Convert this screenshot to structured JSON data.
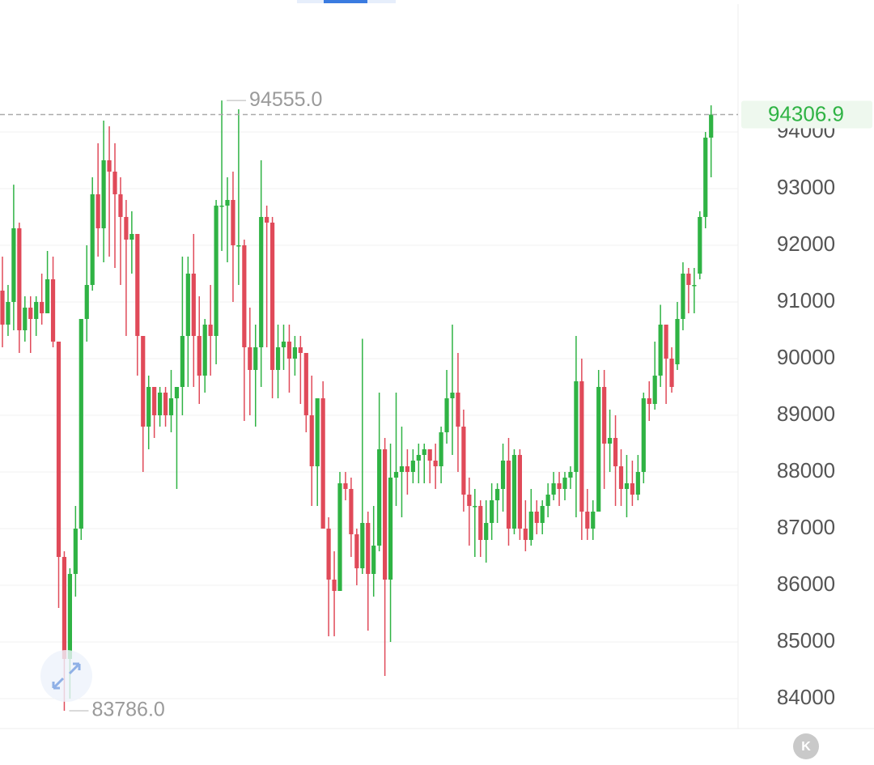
{
  "chart_data": {
    "type": "candlestick",
    "series": [
      {
        "up_color": "#2fb344",
        "down_color": "#e04a59"
      }
    ],
    "candles": [
      [
        91200,
        91800,
        90200,
        90600
      ],
      [
        90600,
        91300,
        90400,
        91000
      ],
      [
        91000,
        93070,
        90500,
        92300
      ],
      [
        92300,
        92400,
        90100,
        90500
      ],
      [
        90500,
        91100,
        90300,
        90900
      ],
      [
        90900,
        91100,
        90100,
        90700
      ],
      [
        90700,
        91100,
        90400,
        91000
      ],
      [
        91000,
        91500,
        90600,
        90800
      ],
      [
        90800,
        91900,
        90800,
        91400
      ],
      [
        91400,
        91800,
        90200,
        90300
      ],
      [
        90300,
        90300,
        85600,
        86500
      ],
      [
        86500,
        86600,
        83786,
        84700
      ],
      [
        84700,
        86300,
        84000,
        86200
      ],
      [
        86200,
        87400,
        85800,
        87000
      ],
      [
        87000,
        90700,
        86800,
        90700
      ],
      [
        90700,
        92000,
        90300,
        91300
      ],
      [
        91300,
        93200,
        91200,
        92900
      ],
      [
        92900,
        93800,
        91800,
        92300
      ],
      [
        92300,
        94200,
        91700,
        93500
      ],
      [
        93500,
        94100,
        91800,
        93300
      ],
      [
        93300,
        93800,
        91600,
        92900
      ],
      [
        92900,
        93200,
        91300,
        92500
      ],
      [
        92500,
        92800,
        90400,
        92100
      ],
      [
        92100,
        92600,
        91500,
        92200
      ],
      [
        92200,
        92200,
        89700,
        90400
      ],
      [
        90400,
        90400,
        88000,
        88800
      ],
      [
        88800,
        89700,
        88400,
        89500
      ],
      [
        89500,
        89500,
        88600,
        89000
      ],
      [
        89000,
        89500,
        88800,
        89400
      ],
      [
        89400,
        89500,
        88800,
        89000
      ],
      [
        89000,
        89800,
        88700,
        89300
      ],
      [
        89300,
        89500,
        87700,
        89500
      ],
      [
        89500,
        91800,
        89000,
        90400
      ],
      [
        90400,
        91800,
        89500,
        91500
      ],
      [
        91500,
        92200,
        89500,
        90400
      ],
      [
        90400,
        91100,
        89200,
        89700
      ],
      [
        89700,
        90700,
        89400,
        90600
      ],
      [
        90600,
        91300,
        89700,
        90400
      ],
      [
        90400,
        92800,
        89900,
        92700
      ],
      [
        92700,
        94555,
        91900,
        92700
      ],
      [
        92700,
        93200,
        91700,
        92800
      ],
      [
        92800,
        93300,
        91000,
        92000
      ],
      [
        92000,
        94400,
        91300,
        92000
      ],
      [
        92000,
        92100,
        88900,
        90200
      ],
      [
        90200,
        90900,
        89000,
        89800
      ],
      [
        89800,
        90600,
        88800,
        90200
      ],
      [
        90200,
        93500,
        89500,
        92500
      ],
      [
        92500,
        92700,
        90200,
        92400
      ],
      [
        92400,
        92500,
        89300,
        89800
      ],
      [
        89800,
        90600,
        89300,
        90200
      ],
      [
        90200,
        90600,
        89800,
        90300
      ],
      [
        90300,
        90600,
        89400,
        90000
      ],
      [
        90000,
        90400,
        89700,
        90200
      ],
      [
        90200,
        90400,
        89200,
        90100
      ],
      [
        90100,
        90100,
        88700,
        89000
      ],
      [
        89000,
        89700,
        87400,
        88100
      ],
      [
        88100,
        89300,
        87400,
        89300
      ],
      [
        89300,
        89600,
        87000,
        87000
      ],
      [
        87000,
        87200,
        85100,
        86100
      ],
      [
        86100,
        86600,
        85100,
        85900
      ],
      [
        85900,
        88000,
        85900,
        87800
      ],
      [
        87800,
        88000,
        87500,
        87700
      ],
      [
        87700,
        87900,
        86500,
        86900
      ],
      [
        86900,
        87000,
        86000,
        86300
      ],
      [
        86300,
        90350,
        86200,
        87100
      ],
      [
        87100,
        87300,
        85200,
        86200
      ],
      [
        86200,
        87400,
        85800,
        86700
      ],
      [
        86700,
        89400,
        86600,
        88400
      ],
      [
        88400,
        88600,
        84400,
        86100
      ],
      [
        86100,
        88500,
        85000,
        87900
      ],
      [
        87900,
        89400,
        87400,
        88000
      ],
      [
        88000,
        88800,
        87200,
        88100
      ],
      [
        88100,
        88400,
        87600,
        88000
      ],
      [
        88000,
        88400,
        87800,
        88200
      ],
      [
        88200,
        88500,
        87800,
        88300
      ],
      [
        88300,
        88500,
        87800,
        88400
      ],
      [
        88400,
        88400,
        87800,
        88200
      ],
      [
        88200,
        88500,
        87700,
        88100
      ],
      [
        88100,
        88800,
        87800,
        88700
      ],
      [
        88700,
        89800,
        88500,
        89300
      ],
      [
        89300,
        90600,
        88300,
        89400
      ],
      [
        89400,
        90100,
        88000,
        88800
      ],
      [
        88800,
        89100,
        87300,
        87600
      ],
      [
        87600,
        87900,
        86700,
        87400
      ],
      [
        87400,
        87700,
        86500,
        87400
      ],
      [
        87400,
        87500,
        86500,
        86800
      ],
      [
        86800,
        87500,
        86400,
        87100
      ],
      [
        87100,
        87800,
        86800,
        87500
      ],
      [
        87500,
        87800,
        87100,
        87700
      ],
      [
        87700,
        88500,
        87300,
        88200
      ],
      [
        88200,
        88600,
        86700,
        87000
      ],
      [
        87000,
        88400,
        86900,
        88300
      ],
      [
        88300,
        88400,
        86800,
        87000
      ],
      [
        87000,
        87500,
        86600,
        86800
      ],
      [
        86800,
        87700,
        86700,
        87300
      ],
      [
        87300,
        87500,
        86900,
        87100
      ],
      [
        87100,
        87500,
        86900,
        87400
      ],
      [
        87400,
        87800,
        87200,
        87600
      ],
      [
        87600,
        88000,
        87500,
        87800
      ],
      [
        87800,
        88000,
        87400,
        87700
      ],
      [
        87700,
        88000,
        87500,
        87900
      ],
      [
        87900,
        88100,
        87700,
        88000
      ],
      [
        88000,
        90400,
        87200,
        89600
      ],
      [
        89600,
        90000,
        86800,
        87300
      ],
      [
        87300,
        87700,
        86800,
        87000
      ],
      [
        87000,
        87500,
        86800,
        87300
      ],
      [
        87300,
        89800,
        87300,
        89500
      ],
      [
        89500,
        89800,
        87700,
        88500
      ],
      [
        88500,
        89100,
        88000,
        88600
      ],
      [
        88600,
        89000,
        87400,
        88100
      ],
      [
        88100,
        88400,
        87400,
        87700
      ],
      [
        87700,
        88300,
        87200,
        87800
      ],
      [
        87800,
        88200,
        87400,
        87600
      ],
      [
        87600,
        88300,
        87500,
        88000
      ],
      [
        88000,
        89400,
        87800,
        89300
      ],
      [
        89300,
        89600,
        88900,
        89200
      ],
      [
        89200,
        90300,
        89100,
        89700
      ],
      [
        89700,
        90950,
        89500,
        90600
      ],
      [
        90600,
        90600,
        89200,
        90000
      ],
      [
        90000,
        90200,
        89400,
        89500
      ],
      [
        89900,
        91000,
        89800,
        90700
      ],
      [
        90700,
        91700,
        90500,
        91500
      ],
      [
        91500,
        91600,
        90800,
        91300
      ],
      [
        91300,
        91600,
        90800,
        91300
      ],
      [
        91500,
        92600,
        91400,
        92500
      ],
      [
        92500,
        94000,
        92300,
        93900
      ],
      [
        93900,
        94470,
        93200,
        94306.9
      ]
    ],
    "ylim": [
      83471,
      96329
    ],
    "yticks": [
      84000,
      85000,
      86000,
      87000,
      88000,
      89000,
      90000,
      91000,
      92000,
      93000,
      94000
    ],
    "grid": true,
    "annotations": [
      {
        "value": 94555,
        "label": "94555.0",
        "candle": 39
      },
      {
        "value": 83786,
        "label": "83786.0",
        "candle": 11
      }
    ],
    "last_price": {
      "value": 94306.9,
      "label": "94306.9"
    },
    "icon_label": "K"
  }
}
